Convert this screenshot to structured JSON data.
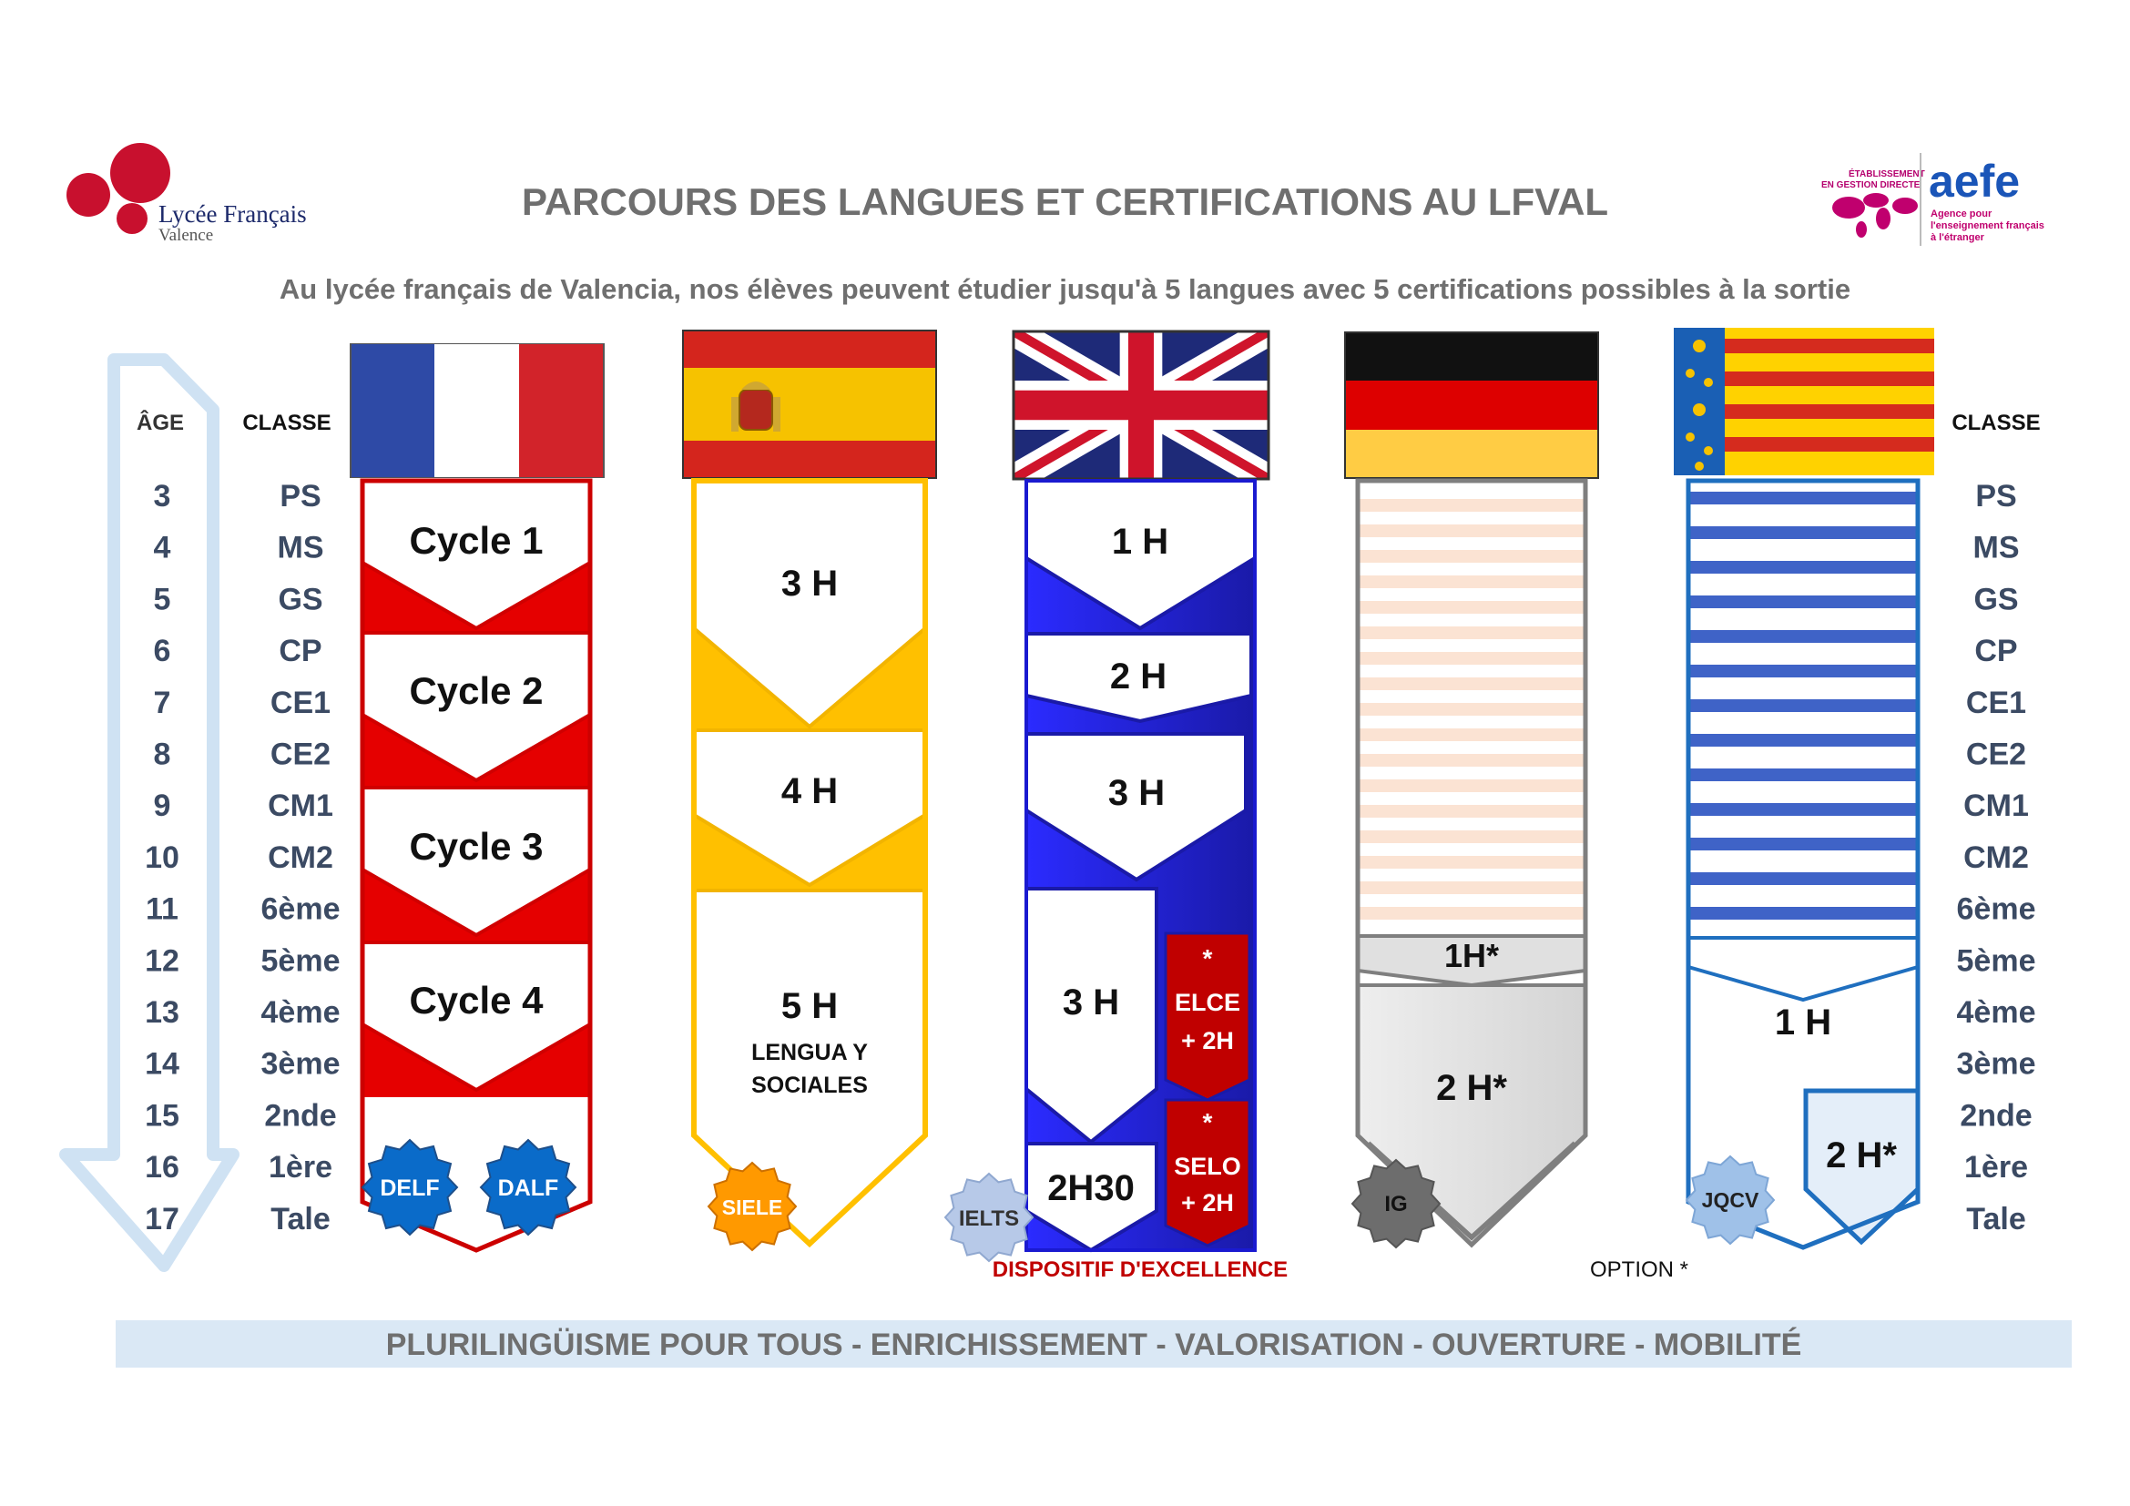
{
  "header": {
    "title": "PARCOURS DES LANGUES  ET CERTIFICATIONS AU LFVAL",
    "subtitle": "Au lycée français de Valencia, nos élèves peuvent étudier jusqu'à 5 langues avec 5 certifications possibles à la sortie"
  },
  "logo_left": {
    "name": "Lycée Français",
    "city": "Valence"
  },
  "logo_right": {
    "badge_line1": "ÉTABLISSEMENT",
    "badge_line2": "EN GESTION DIRECTE",
    "brand": "aefe",
    "tag1": "Agence pour",
    "tag2": "l'enseignement français",
    "tag3": "à l'étranger"
  },
  "columns_header": {
    "age": "ÂGE",
    "classe": "CLASSE",
    "classe_right": "CLASSE"
  },
  "ages": [
    "3",
    "4",
    "5",
    "6",
    "7",
    "8",
    "9",
    "10",
    "11",
    "12",
    "13",
    "14",
    "15",
    "16",
    "17"
  ],
  "classes": [
    "PS",
    "MS",
    "GS",
    "CP",
    "CE1",
    "CE2",
    "CM1",
    "CM2",
    "6ème",
    "5ème",
    "4ème",
    "3ème",
    "2nde",
    "1ère",
    "Tale"
  ],
  "french": {
    "flag": "france-flag",
    "cycles": [
      "Cycle 1",
      "Cycle 2",
      "Cycle 3",
      "Cycle 4"
    ],
    "cert1": "DELF",
    "cert2": "DALF"
  },
  "spanish": {
    "flag": "spain-flag",
    "h1": "3 H",
    "h2": "4 H",
    "h3": "5 H",
    "h3_sub1": "LENGUA Y",
    "h3_sub2": "SOCIALES",
    "cert": "SIELE"
  },
  "english": {
    "flag": "uk-flag",
    "h1": "1 H",
    "h2": "2 H",
    "h3": "3 H",
    "h4": "3 H",
    "h5": "2H30",
    "elce_star": "*",
    "elce1": "ELCE",
    "elce2": "+ 2H",
    "selo_star": "*",
    "selo1": "SELO",
    "selo2": "+ 2H",
    "cert": "IELTS",
    "excellence": "DISPOSITIF D'EXCELLENCE"
  },
  "german": {
    "flag": "germany-flag",
    "h1": "1H*",
    "h2": "2 H*",
    "cert": "IG",
    "option": "OPTION *"
  },
  "valencian": {
    "flag": "valencia-flag",
    "h1": "1 H",
    "h2": "2 H*",
    "cert": "JQCV"
  },
  "footer": "PLURILINGÜISME POUR TOUS  -  ENRICHISSEMENT  -  VALORISATION  -  OUVERTURE  -  MOBILITÉ",
  "colors": {
    "french_red": "#e50000",
    "spanish_yellow": "#ffc000",
    "english_blue": "#1f1fd8",
    "german_grey": "#7f7f7f",
    "valencian_blue": "#1f6fbf",
    "excellence_red": "#c00000",
    "title_grey": "#6f6f6f",
    "footer_band": "#dae8f5"
  }
}
